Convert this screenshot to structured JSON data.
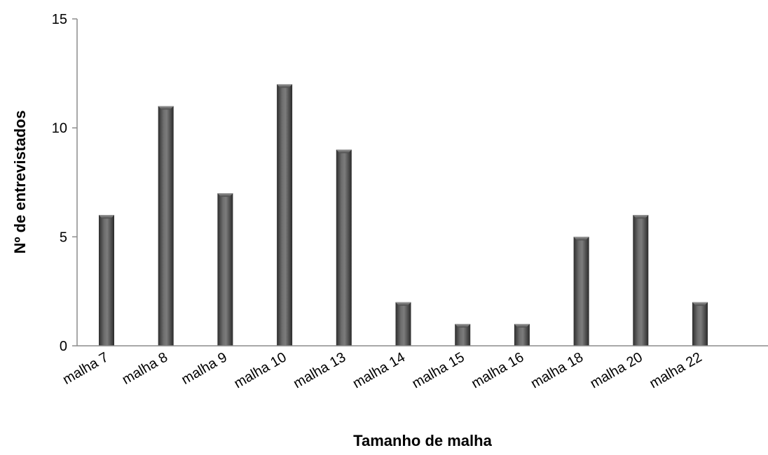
{
  "chart_data": {
    "type": "bar",
    "title": "",
    "xlabel": "Tamanho de malha",
    "ylabel": "Nº de entrevistados",
    "categories": [
      "malha 7",
      "malha 8",
      "malha 9",
      "malha 10",
      "malha 13",
      "malha 14",
      "malha 15",
      "malha 16",
      "malha 18",
      "malha 20",
      "malha 22"
    ],
    "values": [
      6,
      11,
      7,
      12,
      9,
      2,
      1,
      1,
      5,
      6,
      2
    ],
    "ylim": [
      0,
      15
    ],
    "yticks": [
      0,
      5,
      10,
      15
    ],
    "grid": false,
    "legend": "none",
    "colors": {
      "bar": "#5a5a5a",
      "bar_dark": "#2a2a2a",
      "bar_light": "#8a8a8a",
      "axis": "#8c8c8c"
    }
  }
}
